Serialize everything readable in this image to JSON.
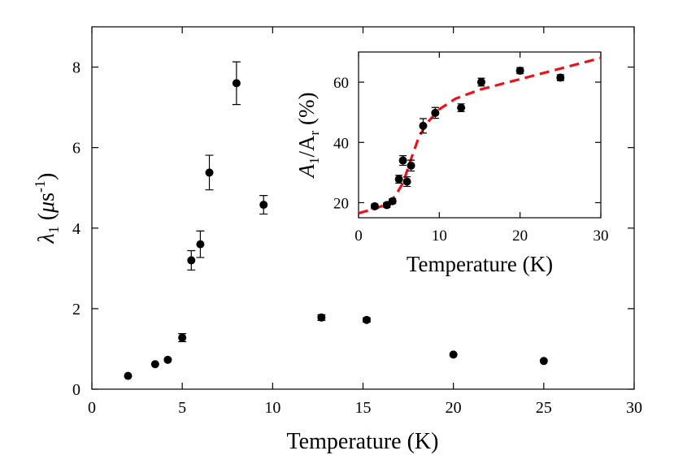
{
  "chart_data": [
    {
      "type": "scatter",
      "title": "",
      "xlabel": "Temperature (K)",
      "ylabel": {
        "main": "λ",
        "sub": "1",
        "unit_open": " (",
        "unit_mu": "μ",
        "unit_s": "s",
        "unit_sup": "-1",
        "unit_close": ")"
      },
      "xlim": [
        0,
        30
      ],
      "ylim": [
        0,
        9
      ],
      "xticks": [
        0,
        5,
        10,
        15,
        20,
        25,
        30
      ],
      "yticks": [
        0,
        2,
        4,
        6,
        8
      ],
      "grid": false,
      "legend": "none",
      "marker_color": "#000000",
      "series": [
        {
          "points": [
            {
              "x": 2.0,
              "y": 0.33,
              "err": 0.0
            },
            {
              "x": 3.5,
              "y": 0.62,
              "err": 0.0
            },
            {
              "x": 4.2,
              "y": 0.73,
              "err": 0.0
            },
            {
              "x": 5.0,
              "y": 1.28,
              "err": 0.1
            },
            {
              "x": 5.5,
              "y": 3.2,
              "err": 0.24
            },
            {
              "x": 6.0,
              "y": 3.6,
              "err": 0.33
            },
            {
              "x": 6.5,
              "y": 5.38,
              "err": 0.43
            },
            {
              "x": 8.0,
              "y": 7.6,
              "err": 0.53
            },
            {
              "x": 9.5,
              "y": 4.58,
              "err": 0.23
            },
            {
              "x": 12.7,
              "y": 1.78,
              "err": 0.07
            },
            {
              "x": 15.2,
              "y": 1.72,
              "err": 0.05
            },
            {
              "x": 20.0,
              "y": 0.86,
              "err": 0.0
            },
            {
              "x": 25.0,
              "y": 0.7,
              "err": 0.0
            }
          ]
        }
      ]
    },
    {
      "type": "scatter",
      "title": "",
      "xlabel": "Temperature (K)",
      "ylabel": {
        "a1": "A",
        "a1_sub": "1",
        "slash": "/A",
        "ar_sub": "r",
        "unit": " (%)"
      },
      "xlim": [
        0,
        30
      ],
      "ylim": [
        15,
        70
      ],
      "xticks": [
        0,
        10,
        20,
        30
      ],
      "yticks": [
        20,
        40,
        60
      ],
      "grid": false,
      "legend": "none",
      "marker_color": "#000000",
      "fit_color": "#e8141b",
      "series": [
        {
          "points": [
            {
              "x": 2.0,
              "y": 18.8,
              "err": 0.8
            },
            {
              "x": 3.5,
              "y": 19.2,
              "err": 0.8
            },
            {
              "x": 4.2,
              "y": 20.5,
              "err": 0.8
            },
            {
              "x": 5.0,
              "y": 27.8,
              "err": 1.3
            },
            {
              "x": 5.5,
              "y": 34.0,
              "err": 1.6
            },
            {
              "x": 6.0,
              "y": 27.0,
              "err": 1.6
            },
            {
              "x": 6.5,
              "y": 32.3,
              "err": 1.8
            },
            {
              "x": 8.0,
              "y": 45.5,
              "err": 2.4
            },
            {
              "x": 9.5,
              "y": 49.8,
              "err": 1.8
            },
            {
              "x": 12.7,
              "y": 51.5,
              "err": 1.3
            },
            {
              "x": 15.2,
              "y": 60.0,
              "err": 1.3
            },
            {
              "x": 20.0,
              "y": 63.8,
              "err": 1.0
            },
            {
              "x": 25.0,
              "y": 61.5,
              "err": 1.0
            }
          ]
        },
        {
          "line": "dashed",
          "points": [
            {
              "x": 0.0,
              "y": 16.5
            },
            {
              "x": 2.0,
              "y": 18.0
            },
            {
              "x": 3.5,
              "y": 19.5
            },
            {
              "x": 4.5,
              "y": 22.0
            },
            {
              "x": 5.5,
              "y": 26.5
            },
            {
              "x": 6.5,
              "y": 34.5
            },
            {
              "x": 7.5,
              "y": 42.0
            },
            {
              "x": 8.5,
              "y": 46.5
            },
            {
              "x": 10.0,
              "y": 51.0
            },
            {
              "x": 12.0,
              "y": 54.5
            },
            {
              "x": 15.0,
              "y": 57.5
            },
            {
              "x": 20.0,
              "y": 61.0
            },
            {
              "x": 25.0,
              "y": 64.5
            },
            {
              "x": 30.0,
              "y": 68.0
            }
          ]
        }
      ]
    }
  ]
}
